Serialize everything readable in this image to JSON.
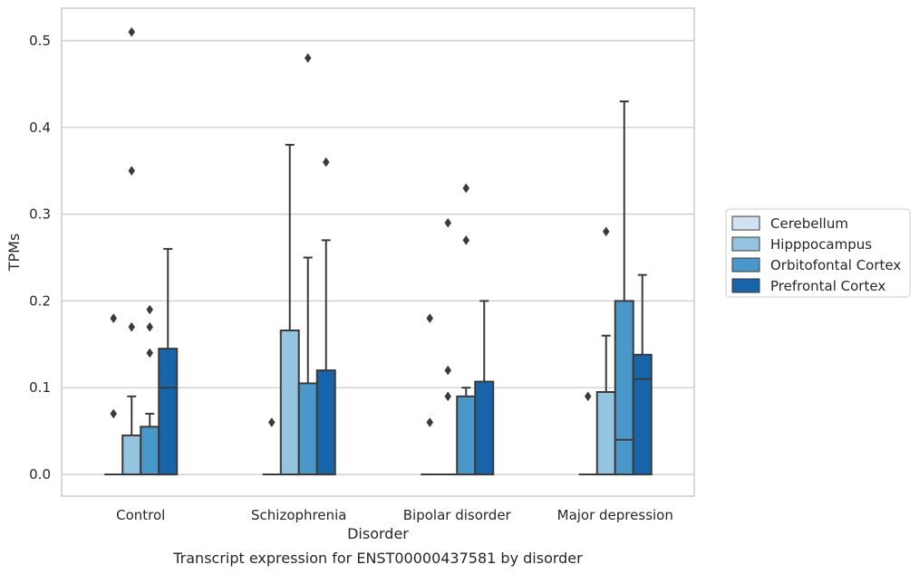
{
  "chart_data": {
    "type": "box",
    "title": "Transcript expression for ENST00000437581 by disorder",
    "xlabel": "Disorder",
    "ylabel": "TPMs",
    "ylim": [
      -0.025,
      0.5375
    ],
    "yticks": [
      0.0,
      0.1,
      0.2,
      0.3,
      0.4,
      0.5
    ],
    "ytick_labels": [
      "0.0",
      "0.1",
      "0.2",
      "0.3",
      "0.4",
      "0.5"
    ],
    "grid": true,
    "legend_position": "right",
    "categories": [
      "Control",
      "Schizophrenia",
      "Bipolar disorder",
      "Major depression"
    ],
    "series": [
      {
        "name": "Cerebellum",
        "color": "#d0e1f2",
        "boxes": [
          {
            "q1": 0,
            "median": 0,
            "q3": 0,
            "whisker_low": 0,
            "whisker_high": 0,
            "outliers": [
              0.07,
              0.18
            ]
          },
          {
            "q1": 0,
            "median": 0,
            "q3": 0,
            "whisker_low": 0,
            "whisker_high": 0,
            "outliers": [
              0.06
            ]
          },
          {
            "q1": 0,
            "median": 0,
            "q3": 0,
            "whisker_low": 0,
            "whisker_high": 0,
            "outliers": [
              0.06,
              0.18
            ]
          },
          {
            "q1": 0,
            "median": 0,
            "q3": 0,
            "whisker_low": 0,
            "whisker_high": 0,
            "outliers": [
              0.09
            ]
          }
        ]
      },
      {
        "name": "Hipppocampus",
        "color": "#94c4df",
        "boxes": [
          {
            "q1": 0,
            "median": 0,
            "q3": 0.045,
            "whisker_low": 0,
            "whisker_high": 0.09,
            "outliers": [
              0.17,
              0.35,
              0.51
            ]
          },
          {
            "q1": 0,
            "median": 0,
            "q3": 0.166,
            "whisker_low": 0,
            "whisker_high": 0.38,
            "outliers": []
          },
          {
            "q1": 0,
            "median": 0,
            "q3": 0,
            "whisker_low": 0,
            "whisker_high": 0,
            "outliers": [
              0.09,
              0.12,
              0.29
            ]
          },
          {
            "q1": 0,
            "median": 0,
            "q3": 0.095,
            "whisker_low": 0,
            "whisker_high": 0.16,
            "outliers": [
              0.28
            ]
          }
        ]
      },
      {
        "name": "Orbitofontal Cortex",
        "color": "#4a98c9",
        "boxes": [
          {
            "q1": 0,
            "median": 0,
            "q3": 0.055,
            "whisker_low": 0,
            "whisker_high": 0.07,
            "outliers": [
              0.14,
              0.17,
              0.19
            ]
          },
          {
            "q1": 0,
            "median": 0,
            "q3": 0.105,
            "whisker_low": 0,
            "whisker_high": 0.25,
            "outliers": [
              0.48
            ]
          },
          {
            "q1": 0,
            "median": 0,
            "q3": 0.09,
            "whisker_low": 0,
            "whisker_high": 0.1,
            "outliers": [
              0.27,
              0.33
            ]
          },
          {
            "q1": 0,
            "median": 0.04,
            "q3": 0.2,
            "whisker_low": 0,
            "whisker_high": 0.43,
            "outliers": []
          }
        ]
      },
      {
        "name": "Prefrontal Cortex",
        "color": "#1764ab",
        "boxes": [
          {
            "q1": 0,
            "median": 0.1,
            "q3": 0.145,
            "whisker_low": 0,
            "whisker_high": 0.26,
            "outliers": []
          },
          {
            "q1": 0,
            "median": 0,
            "q3": 0.12,
            "whisker_low": 0,
            "whisker_high": 0.27,
            "outliers": [
              0.36
            ]
          },
          {
            "q1": 0,
            "median": 0,
            "q3": 0.107,
            "whisker_low": 0,
            "whisker_high": 0.2,
            "outliers": []
          },
          {
            "q1": 0,
            "median": 0.11,
            "q3": 0.138,
            "whisker_low": 0,
            "whisker_high": 0.23,
            "outliers": []
          }
        ]
      }
    ]
  }
}
